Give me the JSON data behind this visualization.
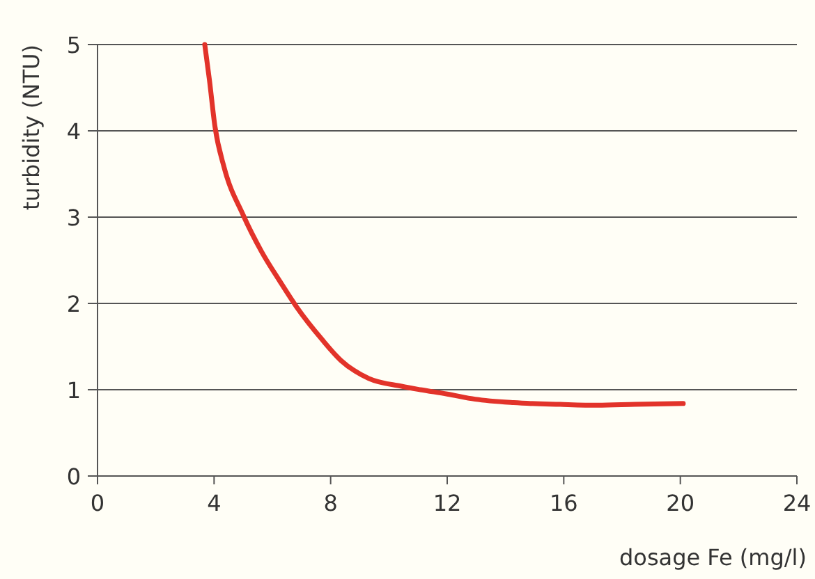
{
  "chart_data": {
    "type": "line",
    "xlabel": "dosage Fe (mg/l)",
    "ylabel": "turbidity (NTU)",
    "xlim": [
      0,
      24
    ],
    "xticks": [
      0,
      4,
      8,
      12,
      16,
      20,
      24
    ],
    "ylim": [
      0,
      5
    ],
    "yticks": [
      0,
      1,
      2,
      3,
      4,
      5
    ],
    "grid": "y",
    "marker": "none",
    "line_style": "solid",
    "series": [
      {
        "color": "#e2332a",
        "x": [
          3.68,
          3.84,
          4.03,
          4.35,
          4.99,
          5.63,
          6.27,
          6.83,
          7.71,
          8.35,
          9.31,
          10.43,
          11.08,
          12,
          12.96,
          14.28,
          15.88,
          17.16,
          18.44,
          20.1
        ],
        "values": [
          5,
          4.59,
          4.05,
          3.57,
          3.03,
          2.6,
          2.25,
          1.96,
          1.58,
          1.34,
          1.13,
          1.04,
          1,
          0.95,
          0.89,
          0.85,
          0.83,
          0.82,
          0.83,
          0.84
        ]
      }
    ]
  }
}
